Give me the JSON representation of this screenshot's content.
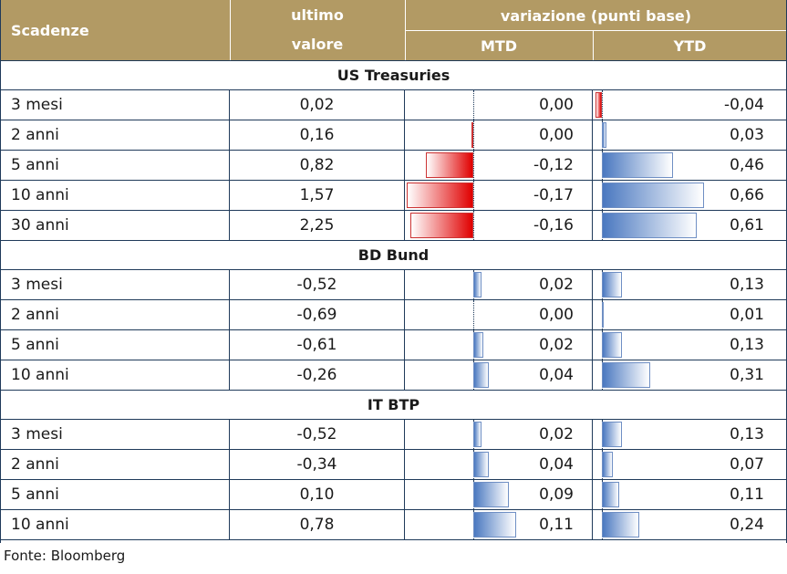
{
  "header": {
    "scadenze": "Scadenze",
    "ultimo_line1": "ultimo",
    "ultimo_line2": "valore",
    "variazione": "variazione (punti base)",
    "mtd": "MTD",
    "ytd": "YTD"
  },
  "groups": [
    {
      "title": "US Treasuries",
      "rows": [
        {
          "scadenza": "3 mesi",
          "valore": "0,02",
          "mtd": "0,00",
          "ytd": "-0,04",
          "mtd_num": 0.0,
          "ytd_num": -0.04
        },
        {
          "scadenza": "2 anni",
          "valore": "0,16",
          "mtd": "0,00",
          "ytd": "0,03",
          "mtd_num": -0.005,
          "ytd_num": 0.03
        },
        {
          "scadenza": "5 anni",
          "valore": "0,82",
          "mtd": "-0,12",
          "ytd": "0,46",
          "mtd_num": -0.12,
          "ytd_num": 0.46
        },
        {
          "scadenza": "10 anni",
          "valore": "1,57",
          "mtd": "-0,17",
          "ytd": "0,66",
          "mtd_num": -0.17,
          "ytd_num": 0.66
        },
        {
          "scadenza": "30 anni",
          "valore": "2,25",
          "mtd": "-0,16",
          "ytd": "0,61",
          "mtd_num": -0.16,
          "ytd_num": 0.61
        }
      ]
    },
    {
      "title": "BD Bund",
      "rows": [
        {
          "scadenza": "3 mesi",
          "valore": "-0,52",
          "mtd": "0,02",
          "ytd": "0,13",
          "mtd_num": 0.02,
          "ytd_num": 0.13
        },
        {
          "scadenza": "2 anni",
          "valore": "-0,69",
          "mtd": "0,00",
          "ytd": "0,01",
          "mtd_num": 0.0,
          "ytd_num": 0.01
        },
        {
          "scadenza": "5 anni",
          "valore": "-0,61",
          "mtd": "0,02",
          "ytd": "0,13",
          "mtd_num": 0.025,
          "ytd_num": 0.13
        },
        {
          "scadenza": "10 anni",
          "valore": "-0,26",
          "mtd": "0,04",
          "ytd": "0,31",
          "mtd_num": 0.04,
          "ytd_num": 0.31
        }
      ]
    },
    {
      "title": "IT BTP",
      "rows": [
        {
          "scadenza": "3 mesi",
          "valore": "-0,52",
          "mtd": "0,02",
          "ytd": "0,13",
          "mtd_num": 0.02,
          "ytd_num": 0.13
        },
        {
          "scadenza": "2 anni",
          "valore": "-0,34",
          "mtd": "0,04",
          "ytd": "0,07",
          "mtd_num": 0.04,
          "ytd_num": 0.07
        },
        {
          "scadenza": "5 anni",
          "valore": "0,10",
          "mtd": "0,09",
          "ytd": "0,11",
          "mtd_num": 0.09,
          "ytd_num": 0.11
        },
        {
          "scadenza": "10 anni",
          "valore": "0,78",
          "mtd": "0,11",
          "ytd": "0,24",
          "mtd_num": 0.11,
          "ytd_num": 0.24
        }
      ]
    }
  ],
  "footer": "Fonte: Bloomberg",
  "colors": {
    "header_bg": "#b29a64",
    "positive_bar": "#4a78c0",
    "negative_bar": "#e00000",
    "grid": "#1f3a5a"
  }
}
